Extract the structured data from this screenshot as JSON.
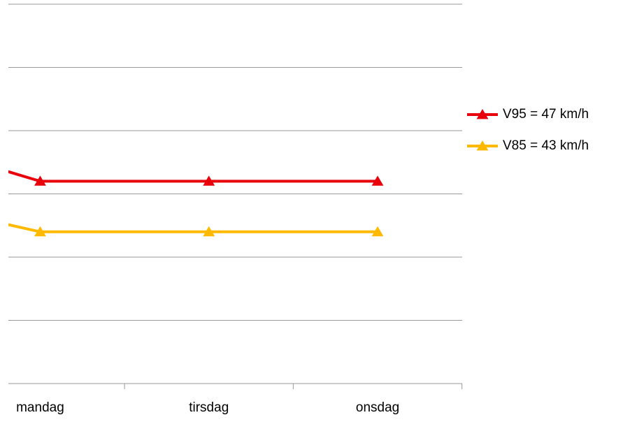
{
  "chart_data": {
    "type": "line",
    "categories": [
      null,
      "mandag",
      "tirsdag",
      "onsdag"
    ],
    "series": [
      {
        "name": "V95 = 47 km/h",
        "color": "#e8000b",
        "values": [
          51,
          47,
          47,
          47
        ]
      },
      {
        "name": "V85 = 43 km/h",
        "color": "#ffba00",
        "values": [
          46,
          43,
          43,
          43
        ]
      }
    ],
    "ylim": [
      31,
      61
    ],
    "yticks": [
      31,
      36,
      41,
      46,
      51,
      56,
      61
    ],
    "grid": true,
    "legend": "right"
  }
}
